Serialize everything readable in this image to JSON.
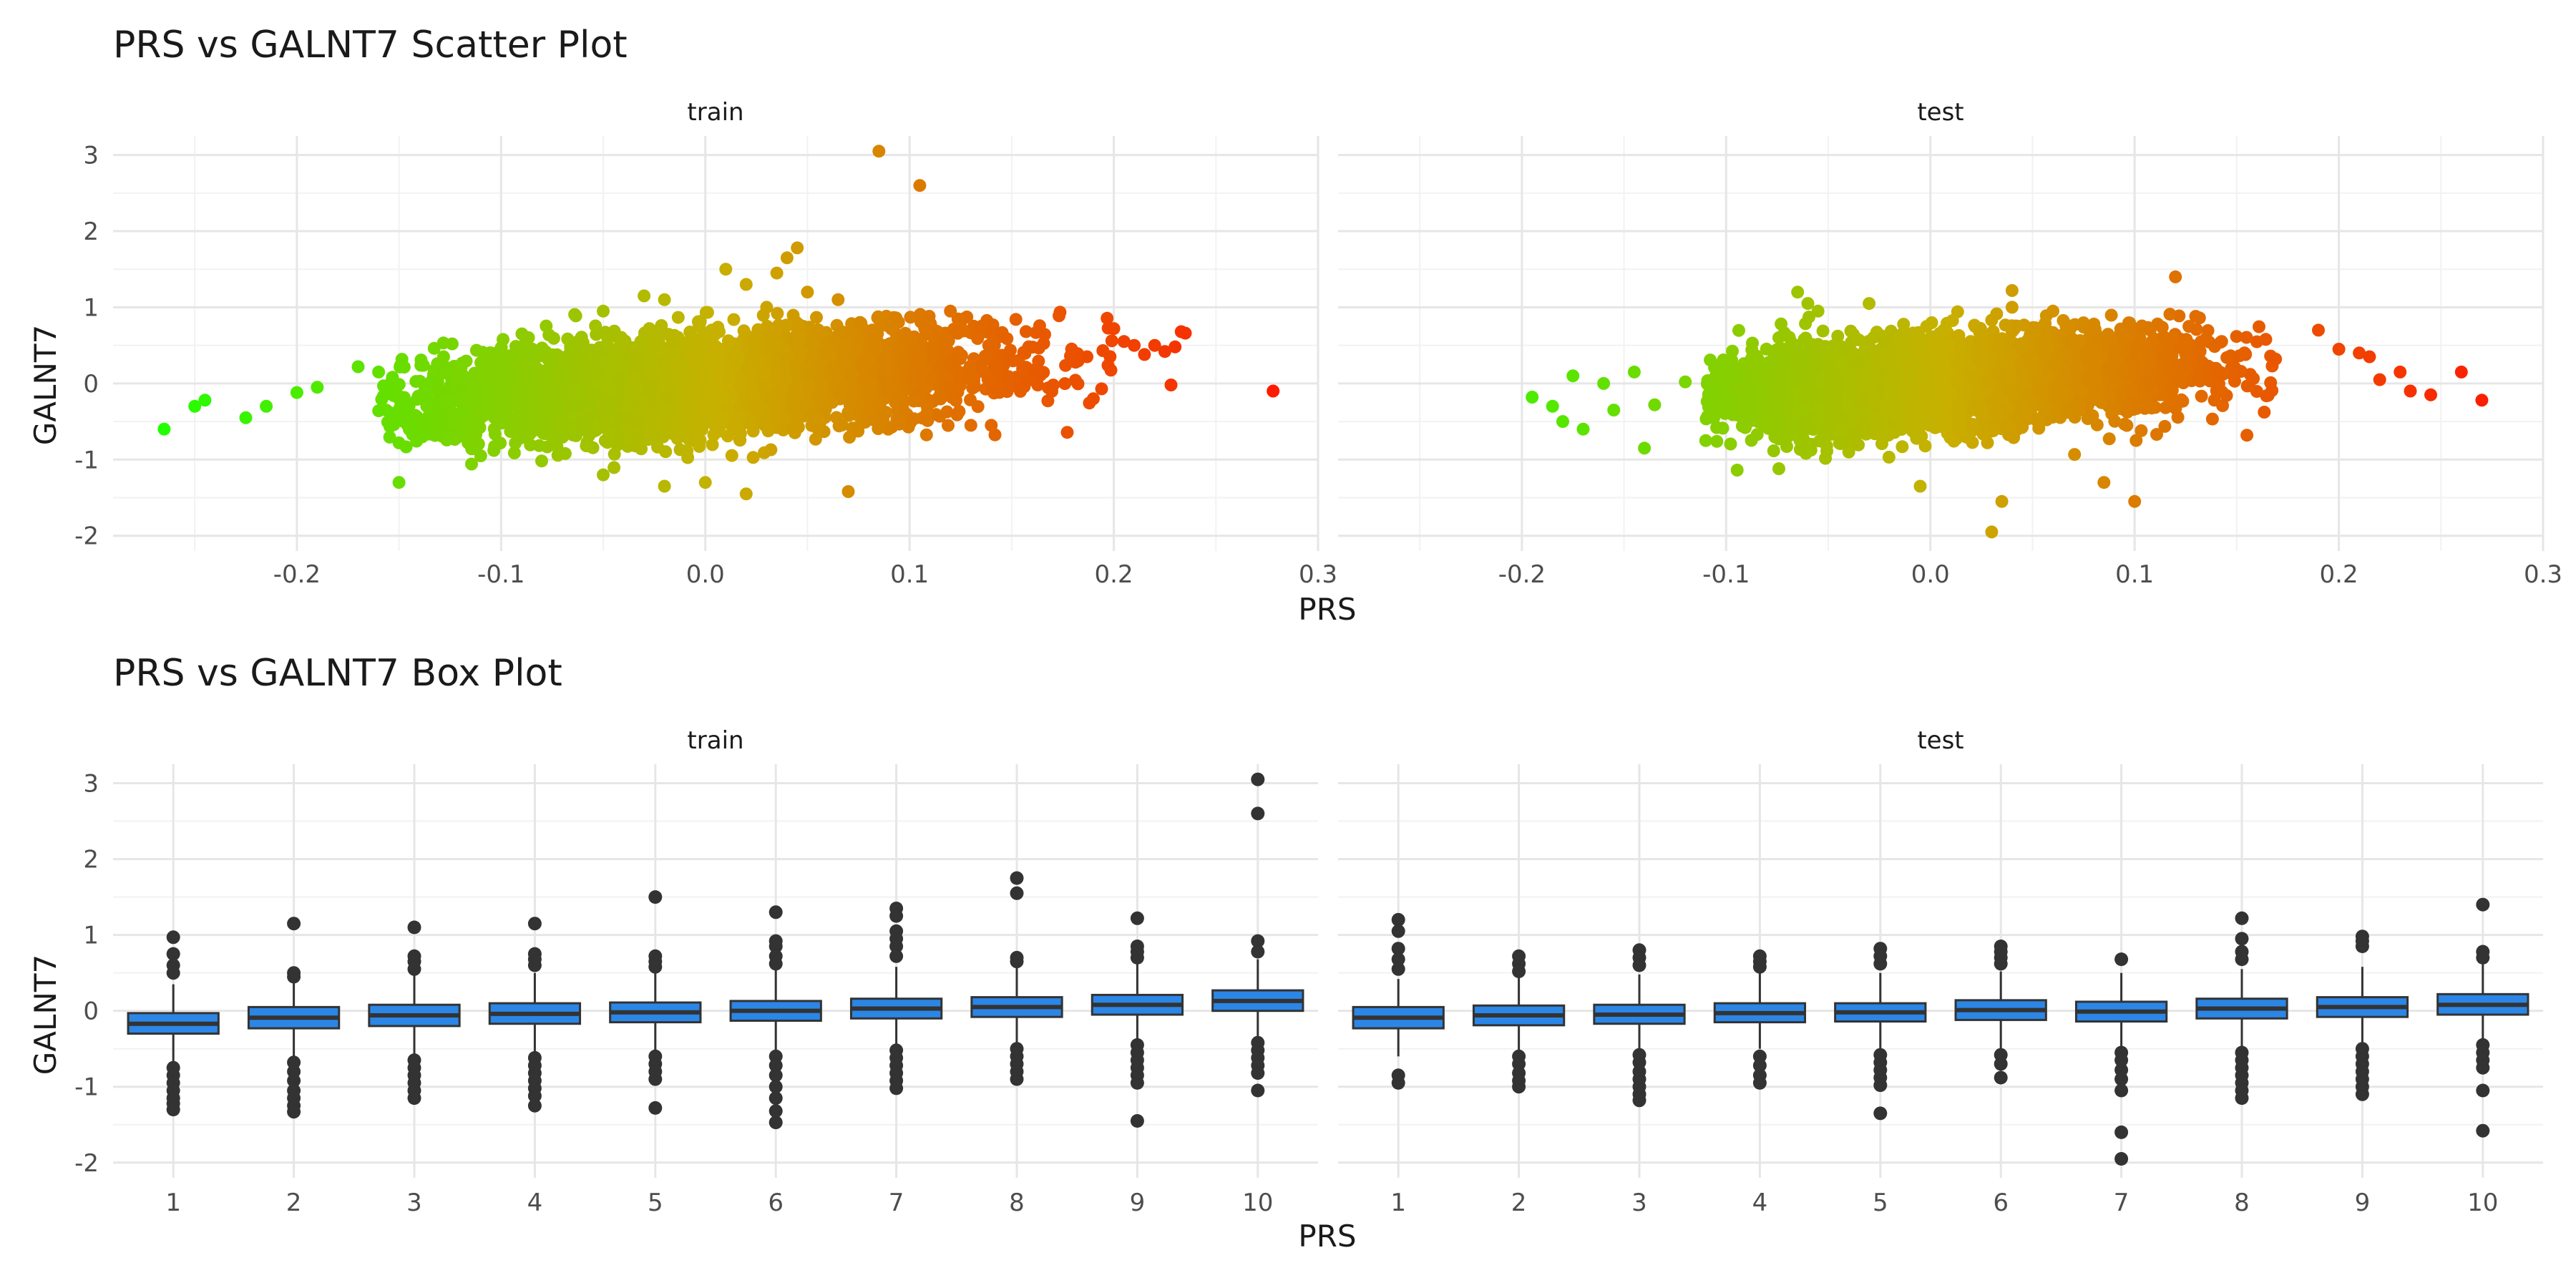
{
  "chart_data": [
    {
      "type": "scatter",
      "title": "PRS vs GALNT7 Scatter Plot",
      "xlabel": "PRS",
      "ylabel": "GALNT7",
      "facets": [
        "train",
        "test"
      ],
      "xlim": [
        -0.29,
        0.3
      ],
      "ylim": [
        -2.2,
        3.25
      ],
      "x_ticks": [
        -0.2,
        -0.1,
        0.0,
        0.1,
        0.2,
        0.3
      ],
      "x_tick_labels": [
        "-0.2",
        "-0.1",
        "0.0",
        "0.1",
        "0.2",
        "0.3"
      ],
      "y_ticks": [
        -2,
        -1,
        0,
        1,
        2,
        3
      ],
      "y_tick_labels": [
        "-2",
        "-1",
        "0",
        "1",
        "2",
        "3"
      ],
      "grid": true,
      "color_scale": {
        "low": "#22ff00",
        "mid": "#c8b000",
        "high": "#ff1a00"
      },
      "series": [
        {
          "facet": "train",
          "cloud": {
            "x_center": 0.0,
            "x_sd": 0.07,
            "x_range": [
              -0.16,
              0.2
            ],
            "slope": 1.9,
            "y_sd": 0.33
          },
          "points": [
            {
              "x": -0.265,
              "y": -0.6
            },
            {
              "x": -0.25,
              "y": -0.3
            },
            {
              "x": -0.245,
              "y": -0.22
            },
            {
              "x": -0.225,
              "y": -0.45
            },
            {
              "x": -0.215,
              "y": -0.3
            },
            {
              "x": -0.2,
              "y": -0.12
            },
            {
              "x": -0.19,
              "y": -0.05
            },
            {
              "x": -0.17,
              "y": 0.22
            },
            {
              "x": -0.16,
              "y": 0.15
            },
            {
              "x": -0.15,
              "y": -1.3
            },
            {
              "x": -0.15,
              "y": -0.78
            },
            {
              "x": -0.14,
              "y": -0.7
            },
            {
              "x": -0.11,
              "y": -0.95
            },
            {
              "x": -0.05,
              "y": 0.95
            },
            {
              "x": -0.03,
              "y": 1.15
            },
            {
              "x": -0.02,
              "y": 1.1
            },
            {
              "x": -0.05,
              "y": -1.2
            },
            {
              "x": -0.02,
              "y": -1.35
            },
            {
              "x": 0.0,
              "y": -1.3
            },
            {
              "x": 0.01,
              "y": 1.5
            },
            {
              "x": 0.02,
              "y": -1.45
            },
            {
              "x": 0.02,
              "y": 1.3
            },
            {
              "x": 0.03,
              "y": 1.0
            },
            {
              "x": 0.035,
              "y": 1.45
            },
            {
              "x": 0.04,
              "y": 1.65
            },
            {
              "x": 0.045,
              "y": 1.78
            },
            {
              "x": 0.05,
              "y": 1.2
            },
            {
              "x": 0.065,
              "y": 1.1
            },
            {
              "x": 0.07,
              "y": -1.42
            },
            {
              "x": 0.085,
              "y": 3.05
            },
            {
              "x": 0.105,
              "y": 2.6
            },
            {
              "x": 0.12,
              "y": 0.95
            },
            {
              "x": 0.14,
              "y": -0.55
            },
            {
              "x": 0.19,
              "y": -0.2
            },
            {
              "x": 0.2,
              "y": 0.72
            },
            {
              "x": 0.205,
              "y": 0.55
            },
            {
              "x": 0.21,
              "y": 0.5
            },
            {
              "x": 0.215,
              "y": 0.38
            },
            {
              "x": 0.22,
              "y": 0.5
            },
            {
              "x": 0.225,
              "y": 0.42
            },
            {
              "x": 0.23,
              "y": 0.48
            },
            {
              "x": 0.233,
              "y": 0.68
            },
            {
              "x": 0.235,
              "y": 0.66
            },
            {
              "x": 0.228,
              "y": -0.02
            },
            {
              "x": 0.278,
              "y": -0.1
            }
          ]
        },
        {
          "facet": "test",
          "cloud": {
            "x_center": 0.0,
            "x_sd": 0.065,
            "x_range": [
              -0.11,
              0.17
            ],
            "slope": 1.5,
            "y_sd": 0.3
          },
          "points": [
            {
              "x": -0.195,
              "y": -0.18
            },
            {
              "x": -0.185,
              "y": -0.3
            },
            {
              "x": -0.18,
              "y": -0.5
            },
            {
              "x": -0.175,
              "y": 0.1
            },
            {
              "x": -0.17,
              "y": -0.6
            },
            {
              "x": -0.16,
              "y": 0.0
            },
            {
              "x": -0.155,
              "y": -0.35
            },
            {
              "x": -0.145,
              "y": 0.15
            },
            {
              "x": -0.14,
              "y": -0.85
            },
            {
              "x": -0.135,
              "y": -0.28
            },
            {
              "x": -0.12,
              "y": 0.02
            },
            {
              "x": -0.11,
              "y": -0.75
            },
            {
              "x": -0.065,
              "y": 1.2
            },
            {
              "x": -0.06,
              "y": 1.05
            },
            {
              "x": -0.055,
              "y": 0.95
            },
            {
              "x": -0.03,
              "y": 1.05
            },
            {
              "x": -0.005,
              "y": -1.35
            },
            {
              "x": 0.03,
              "y": -1.95
            },
            {
              "x": 0.035,
              "y": -1.55
            },
            {
              "x": 0.04,
              "y": 1.22
            },
            {
              "x": 0.04,
              "y": 1.0
            },
            {
              "x": 0.06,
              "y": 0.95
            },
            {
              "x": 0.085,
              "y": -1.3
            },
            {
              "x": 0.1,
              "y": -1.55
            },
            {
              "x": 0.12,
              "y": 1.4
            },
            {
              "x": 0.155,
              "y": -0.68
            },
            {
              "x": 0.19,
              "y": 0.7
            },
            {
              "x": 0.2,
              "y": 0.45
            },
            {
              "x": 0.21,
              "y": 0.4
            },
            {
              "x": 0.215,
              "y": 0.35
            },
            {
              "x": 0.22,
              "y": 0.05
            },
            {
              "x": 0.23,
              "y": 0.15
            },
            {
              "x": 0.235,
              "y": -0.1
            },
            {
              "x": 0.245,
              "y": -0.15
            },
            {
              "x": 0.26,
              "y": 0.15
            },
            {
              "x": 0.27,
              "y": -0.22
            }
          ]
        }
      ]
    },
    {
      "type": "box",
      "title": "PRS vs GALNT7 Box Plot",
      "xlabel": "PRS",
      "ylabel": "GALNT7",
      "facets": [
        "train",
        "test"
      ],
      "categories": [
        "1",
        "2",
        "3",
        "4",
        "5",
        "6",
        "7",
        "8",
        "9",
        "10"
      ],
      "ylim": [
        -2.2,
        3.25
      ],
      "y_ticks": [
        -2,
        -1,
        0,
        1,
        2,
        3
      ],
      "y_tick_labels": [
        "-2",
        "-1",
        "0",
        "1",
        "2",
        "3"
      ],
      "grid": true,
      "box_color": "#2b86e6",
      "series": [
        {
          "facet": "train",
          "boxes": [
            {
              "q1": -0.3,
              "median": -0.17,
              "q3": -0.03,
              "lower": -0.7,
              "upper": 0.35,
              "outliers": [
                0.97,
                0.75,
                0.6,
                0.5,
                -0.75,
                -0.85,
                -0.95,
                -1.05,
                -1.15,
                -1.22,
                -1.3
              ]
            },
            {
              "q1": -0.23,
              "median": -0.09,
              "q3": 0.05,
              "lower": -0.62,
              "upper": 0.42,
              "outliers": [
                1.15,
                0.5,
                0.45,
                -0.68,
                -0.8,
                -0.92,
                -1.05,
                -1.15,
                -1.25,
                -1.33
              ]
            },
            {
              "q1": -0.2,
              "median": -0.06,
              "q3": 0.08,
              "lower": -0.6,
              "upper": 0.47,
              "outliers": [
                1.1,
                0.72,
                0.65,
                0.55,
                -0.65,
                -0.75,
                -0.85,
                -0.95,
                -1.05,
                -1.15
              ]
            },
            {
              "q1": -0.17,
              "median": -0.04,
              "q3": 0.1,
              "lower": -0.58,
              "upper": 0.5,
              "outliers": [
                1.15,
                0.75,
                0.68,
                0.6,
                -0.62,
                -0.72,
                -0.82,
                -0.92,
                -1.02,
                -1.12,
                -1.25
              ]
            },
            {
              "q1": -0.15,
              "median": -0.02,
              "q3": 0.11,
              "lower": -0.55,
              "upper": 0.52,
              "outliers": [
                1.5,
                0.72,
                0.65,
                0.58,
                -0.6,
                -0.7,
                -0.8,
                -0.9,
                -1.28
              ]
            },
            {
              "q1": -0.13,
              "median": 0.0,
              "q3": 0.13,
              "lower": -0.52,
              "upper": 0.55,
              "outliers": [
                1.3,
                0.92,
                0.85,
                0.72,
                0.62,
                -0.6,
                -0.72,
                -0.85,
                -1.0,
                -1.15,
                -1.32,
                -1.47
              ]
            },
            {
              "q1": -0.1,
              "median": 0.03,
              "q3": 0.16,
              "lower": -0.48,
              "upper": 0.58,
              "outliers": [
                1.35,
                1.25,
                1.05,
                0.95,
                0.85,
                0.72,
                -0.52,
                -0.62,
                -0.72,
                -0.82,
                -0.92,
                -1.02
              ]
            },
            {
              "q1": -0.08,
              "median": 0.05,
              "q3": 0.18,
              "lower": -0.45,
              "upper": 0.6,
              "outliers": [
                1.75,
                1.55,
                0.7,
                0.65,
                -0.5,
                -0.6,
                -0.7,
                -0.8,
                -0.9
              ]
            },
            {
              "q1": -0.05,
              "median": 0.08,
              "q3": 0.21,
              "lower": -0.42,
              "upper": 0.62,
              "outliers": [
                1.22,
                0.85,
                0.78,
                0.7,
                -0.45,
                -0.55,
                -0.65,
                -0.75,
                -0.85,
                -0.95,
                -1.45
              ]
            },
            {
              "q1": 0.0,
              "median": 0.13,
              "q3": 0.27,
              "lower": -0.38,
              "upper": 0.68,
              "outliers": [
                3.05,
                2.6,
                0.92,
                0.78,
                -0.42,
                -0.52,
                -0.62,
                -0.72,
                -0.82,
                -1.05
              ]
            }
          ]
        },
        {
          "facet": "test",
          "boxes": [
            {
              "q1": -0.23,
              "median": -0.09,
              "q3": 0.05,
              "lower": -0.6,
              "upper": 0.42,
              "outliers": [
                1.2,
                1.05,
                0.82,
                0.68,
                0.55,
                -0.85,
                -0.95
              ]
            },
            {
              "q1": -0.19,
              "median": -0.06,
              "q3": 0.07,
              "lower": -0.55,
              "upper": 0.45,
              "outliers": [
                0.72,
                0.62,
                0.52,
                -0.6,
                -0.7,
                -0.82,
                -0.92,
                -1.0
              ]
            },
            {
              "q1": -0.17,
              "median": -0.05,
              "q3": 0.08,
              "lower": -0.52,
              "upper": 0.48,
              "outliers": [
                0.8,
                0.7,
                0.6,
                -0.58,
                -0.68,
                -0.8,
                -0.9,
                -1.0,
                -1.1,
                -1.18
              ]
            },
            {
              "q1": -0.15,
              "median": -0.03,
              "q3": 0.1,
              "lower": -0.5,
              "upper": 0.5,
              "outliers": [
                0.72,
                0.65,
                0.58,
                -0.6,
                -0.72,
                -0.85,
                -0.95
              ]
            },
            {
              "q1": -0.14,
              "median": -0.02,
              "q3": 0.1,
              "lower": -0.5,
              "upper": 0.5,
              "outliers": [
                0.82,
                0.72,
                0.62,
                -0.58,
                -0.68,
                -0.78,
                -0.88,
                -0.98,
                -1.35
              ]
            },
            {
              "q1": -0.12,
              "median": 0.01,
              "q3": 0.14,
              "lower": -0.5,
              "upper": 0.52,
              "outliers": [
                0.85,
                0.78,
                0.7,
                0.62,
                -0.58,
                -0.7,
                -0.88
              ]
            },
            {
              "q1": -0.14,
              "median": -0.01,
              "q3": 0.12,
              "lower": -0.5,
              "upper": 0.5,
              "outliers": [
                0.68,
                -0.55,
                -0.65,
                -0.78,
                -0.9,
                -1.05,
                -1.6,
                -1.95
              ]
            },
            {
              "q1": -0.1,
              "median": 0.03,
              "q3": 0.16,
              "lower": -0.48,
              "upper": 0.55,
              "outliers": [
                1.22,
                0.95,
                0.78,
                0.68,
                -0.55,
                -0.65,
                -0.75,
                -0.85,
                -0.95,
                -1.05,
                -1.15
              ]
            },
            {
              "q1": -0.08,
              "median": 0.05,
              "q3": 0.18,
              "lower": -0.45,
              "upper": 0.58,
              "outliers": [
                0.98,
                0.92,
                0.85,
                -0.5,
                -0.6,
                -0.7,
                -0.8,
                -0.9,
                -1.0,
                -1.1
              ]
            },
            {
              "q1": -0.05,
              "median": 0.08,
              "q3": 0.22,
              "lower": -0.42,
              "upper": 0.62,
              "outliers": [
                1.4,
                0.78,
                0.7,
                -0.45,
                -0.55,
                -0.65,
                -0.75,
                -1.05,
                -1.58
              ]
            }
          ]
        }
      ]
    }
  ]
}
